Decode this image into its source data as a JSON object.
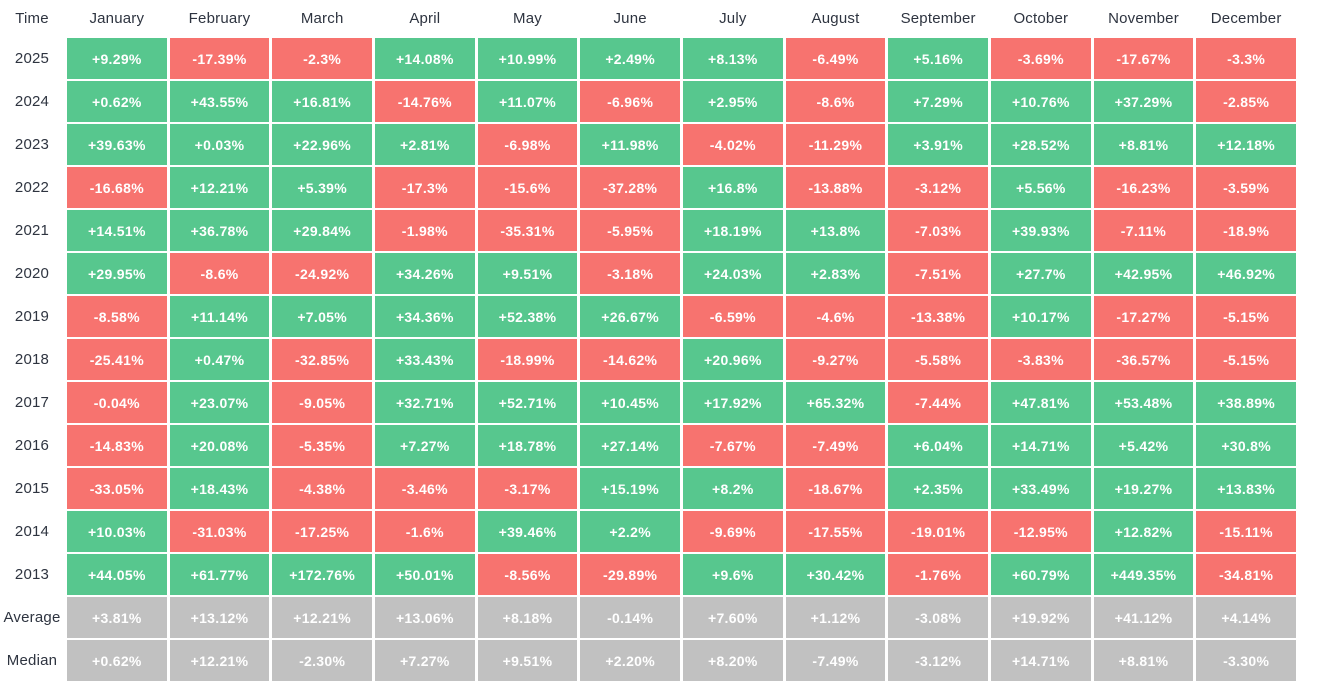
{
  "chart_data": {
    "type": "heatmap",
    "corner_label": "Time",
    "x_labels": [
      "January",
      "February",
      "March",
      "April",
      "May",
      "June",
      "July",
      "August",
      "September",
      "October",
      "November",
      "December"
    ],
    "y_labels": [
      "2025",
      "2024",
      "2023",
      "2022",
      "2021",
      "2020",
      "2019",
      "2018",
      "2017",
      "2016",
      "2015",
      "2014",
      "2013",
      "Average",
      "Median"
    ],
    "rows": [
      {
        "label": "2025",
        "kind": "year",
        "values": [
          "+9.29%",
          "-17.39%",
          "-2.3%",
          "+14.08%",
          "+10.99%",
          "+2.49%",
          "+8.13%",
          "-6.49%",
          "+5.16%",
          "-3.69%",
          "-17.67%",
          "-3.3%"
        ]
      },
      {
        "label": "2024",
        "kind": "year",
        "values": [
          "+0.62%",
          "+43.55%",
          "+16.81%",
          "-14.76%",
          "+11.07%",
          "-6.96%",
          "+2.95%",
          "-8.6%",
          "+7.29%",
          "+10.76%",
          "+37.29%",
          "-2.85%"
        ]
      },
      {
        "label": "2023",
        "kind": "year",
        "values": [
          "+39.63%",
          "+0.03%",
          "+22.96%",
          "+2.81%",
          "-6.98%",
          "+11.98%",
          "-4.02%",
          "-11.29%",
          "+3.91%",
          "+28.52%",
          "+8.81%",
          "+12.18%"
        ]
      },
      {
        "label": "2022",
        "kind": "year",
        "values": [
          "-16.68%",
          "+12.21%",
          "+5.39%",
          "-17.3%",
          "-15.6%",
          "-37.28%",
          "+16.8%",
          "-13.88%",
          "-3.12%",
          "+5.56%",
          "-16.23%",
          "-3.59%"
        ]
      },
      {
        "label": "2021",
        "kind": "year",
        "values": [
          "+14.51%",
          "+36.78%",
          "+29.84%",
          "-1.98%",
          "-35.31%",
          "-5.95%",
          "+18.19%",
          "+13.8%",
          "-7.03%",
          "+39.93%",
          "-7.11%",
          "-18.9%"
        ]
      },
      {
        "label": "2020",
        "kind": "year",
        "values": [
          "+29.95%",
          "-8.6%",
          "-24.92%",
          "+34.26%",
          "+9.51%",
          "-3.18%",
          "+24.03%",
          "+2.83%",
          "-7.51%",
          "+27.7%",
          "+42.95%",
          "+46.92%"
        ]
      },
      {
        "label": "2019",
        "kind": "year",
        "values": [
          "-8.58%",
          "+11.14%",
          "+7.05%",
          "+34.36%",
          "+52.38%",
          "+26.67%",
          "-6.59%",
          "-4.6%",
          "-13.38%",
          "+10.17%",
          "-17.27%",
          "-5.15%"
        ]
      },
      {
        "label": "2018",
        "kind": "year",
        "values": [
          "-25.41%",
          "+0.47%",
          "-32.85%",
          "+33.43%",
          "-18.99%",
          "-14.62%",
          "+20.96%",
          "-9.27%",
          "-5.58%",
          "-3.83%",
          "-36.57%",
          "-5.15%"
        ]
      },
      {
        "label": "2017",
        "kind": "year",
        "values": [
          "-0.04%",
          "+23.07%",
          "-9.05%",
          "+32.71%",
          "+52.71%",
          "+10.45%",
          "+17.92%",
          "+65.32%",
          "-7.44%",
          "+47.81%",
          "+53.48%",
          "+38.89%"
        ]
      },
      {
        "label": "2016",
        "kind": "year",
        "values": [
          "-14.83%",
          "+20.08%",
          "-5.35%",
          "+7.27%",
          "+18.78%",
          "+27.14%",
          "-7.67%",
          "-7.49%",
          "+6.04%",
          "+14.71%",
          "+5.42%",
          "+30.8%"
        ]
      },
      {
        "label": "2015",
        "kind": "year",
        "values": [
          "-33.05%",
          "+18.43%",
          "-4.38%",
          "-3.46%",
          "-3.17%",
          "+15.19%",
          "+8.2%",
          "-18.67%",
          "+2.35%",
          "+33.49%",
          "+19.27%",
          "+13.83%"
        ]
      },
      {
        "label": "2014",
        "kind": "year",
        "values": [
          "+10.03%",
          "-31.03%",
          "-17.25%",
          "-1.6%",
          "+39.46%",
          "+2.2%",
          "-9.69%",
          "-17.55%",
          "-19.01%",
          "-12.95%",
          "+12.82%",
          "-15.11%"
        ]
      },
      {
        "label": "2013",
        "kind": "year",
        "values": [
          "+44.05%",
          "+61.77%",
          "+172.76%",
          "+50.01%",
          "-8.56%",
          "-29.89%",
          "+9.6%",
          "+30.42%",
          "-1.76%",
          "+60.79%",
          "+449.35%",
          "-34.81%"
        ]
      },
      {
        "label": "Average",
        "kind": "summary",
        "values": [
          "+3.81%",
          "+13.12%",
          "+12.21%",
          "+13.06%",
          "+8.18%",
          "-0.14%",
          "+7.60%",
          "+1.12%",
          "-3.08%",
          "+19.92%",
          "+41.12%",
          "+4.14%"
        ]
      },
      {
        "label": "Median",
        "kind": "summary",
        "values": [
          "+0.62%",
          "+12.21%",
          "-2.30%",
          "+7.27%",
          "+9.51%",
          "+2.20%",
          "+8.20%",
          "-7.49%",
          "-3.12%",
          "+14.71%",
          "+8.81%",
          "-3.30%"
        ]
      }
    ],
    "colors": {
      "positive": "#57C78E",
      "negative": "#F7736F",
      "summary": "#C1C1C1",
      "cell_text": "#FFFFFF",
      "header_text": "#2E3440"
    },
    "layout": {
      "grid": "off",
      "legend": "none",
      "color_rule": "green = positive return, red = negative return, gray = Average/Median summary rows"
    }
  }
}
